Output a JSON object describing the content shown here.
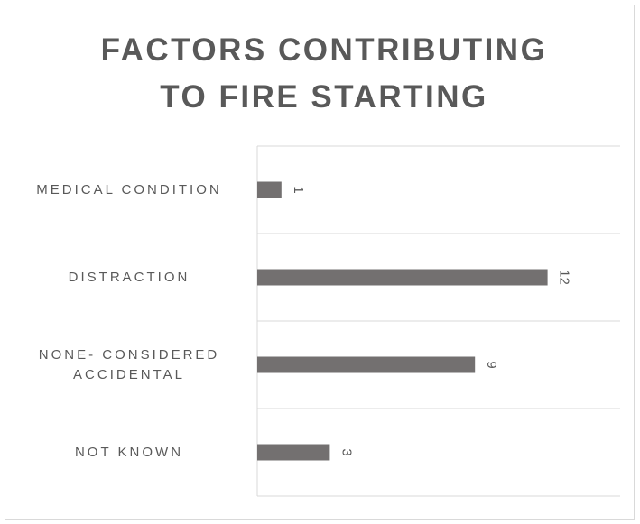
{
  "chart_data": {
    "type": "bar",
    "orientation": "horizontal",
    "title": "FACTORS CONTRIBUTING TO FIRE STARTING",
    "categories": [
      "MEDICAL CONDITION",
      "DISTRACTION",
      "NONE- CONSIDERED ACCIDENTAL",
      "NOT KNOWN"
    ],
    "values": [
      1,
      12,
      9,
      3
    ],
    "color": "#737070",
    "xlim": [
      0,
      15
    ],
    "grid": true
  }
}
